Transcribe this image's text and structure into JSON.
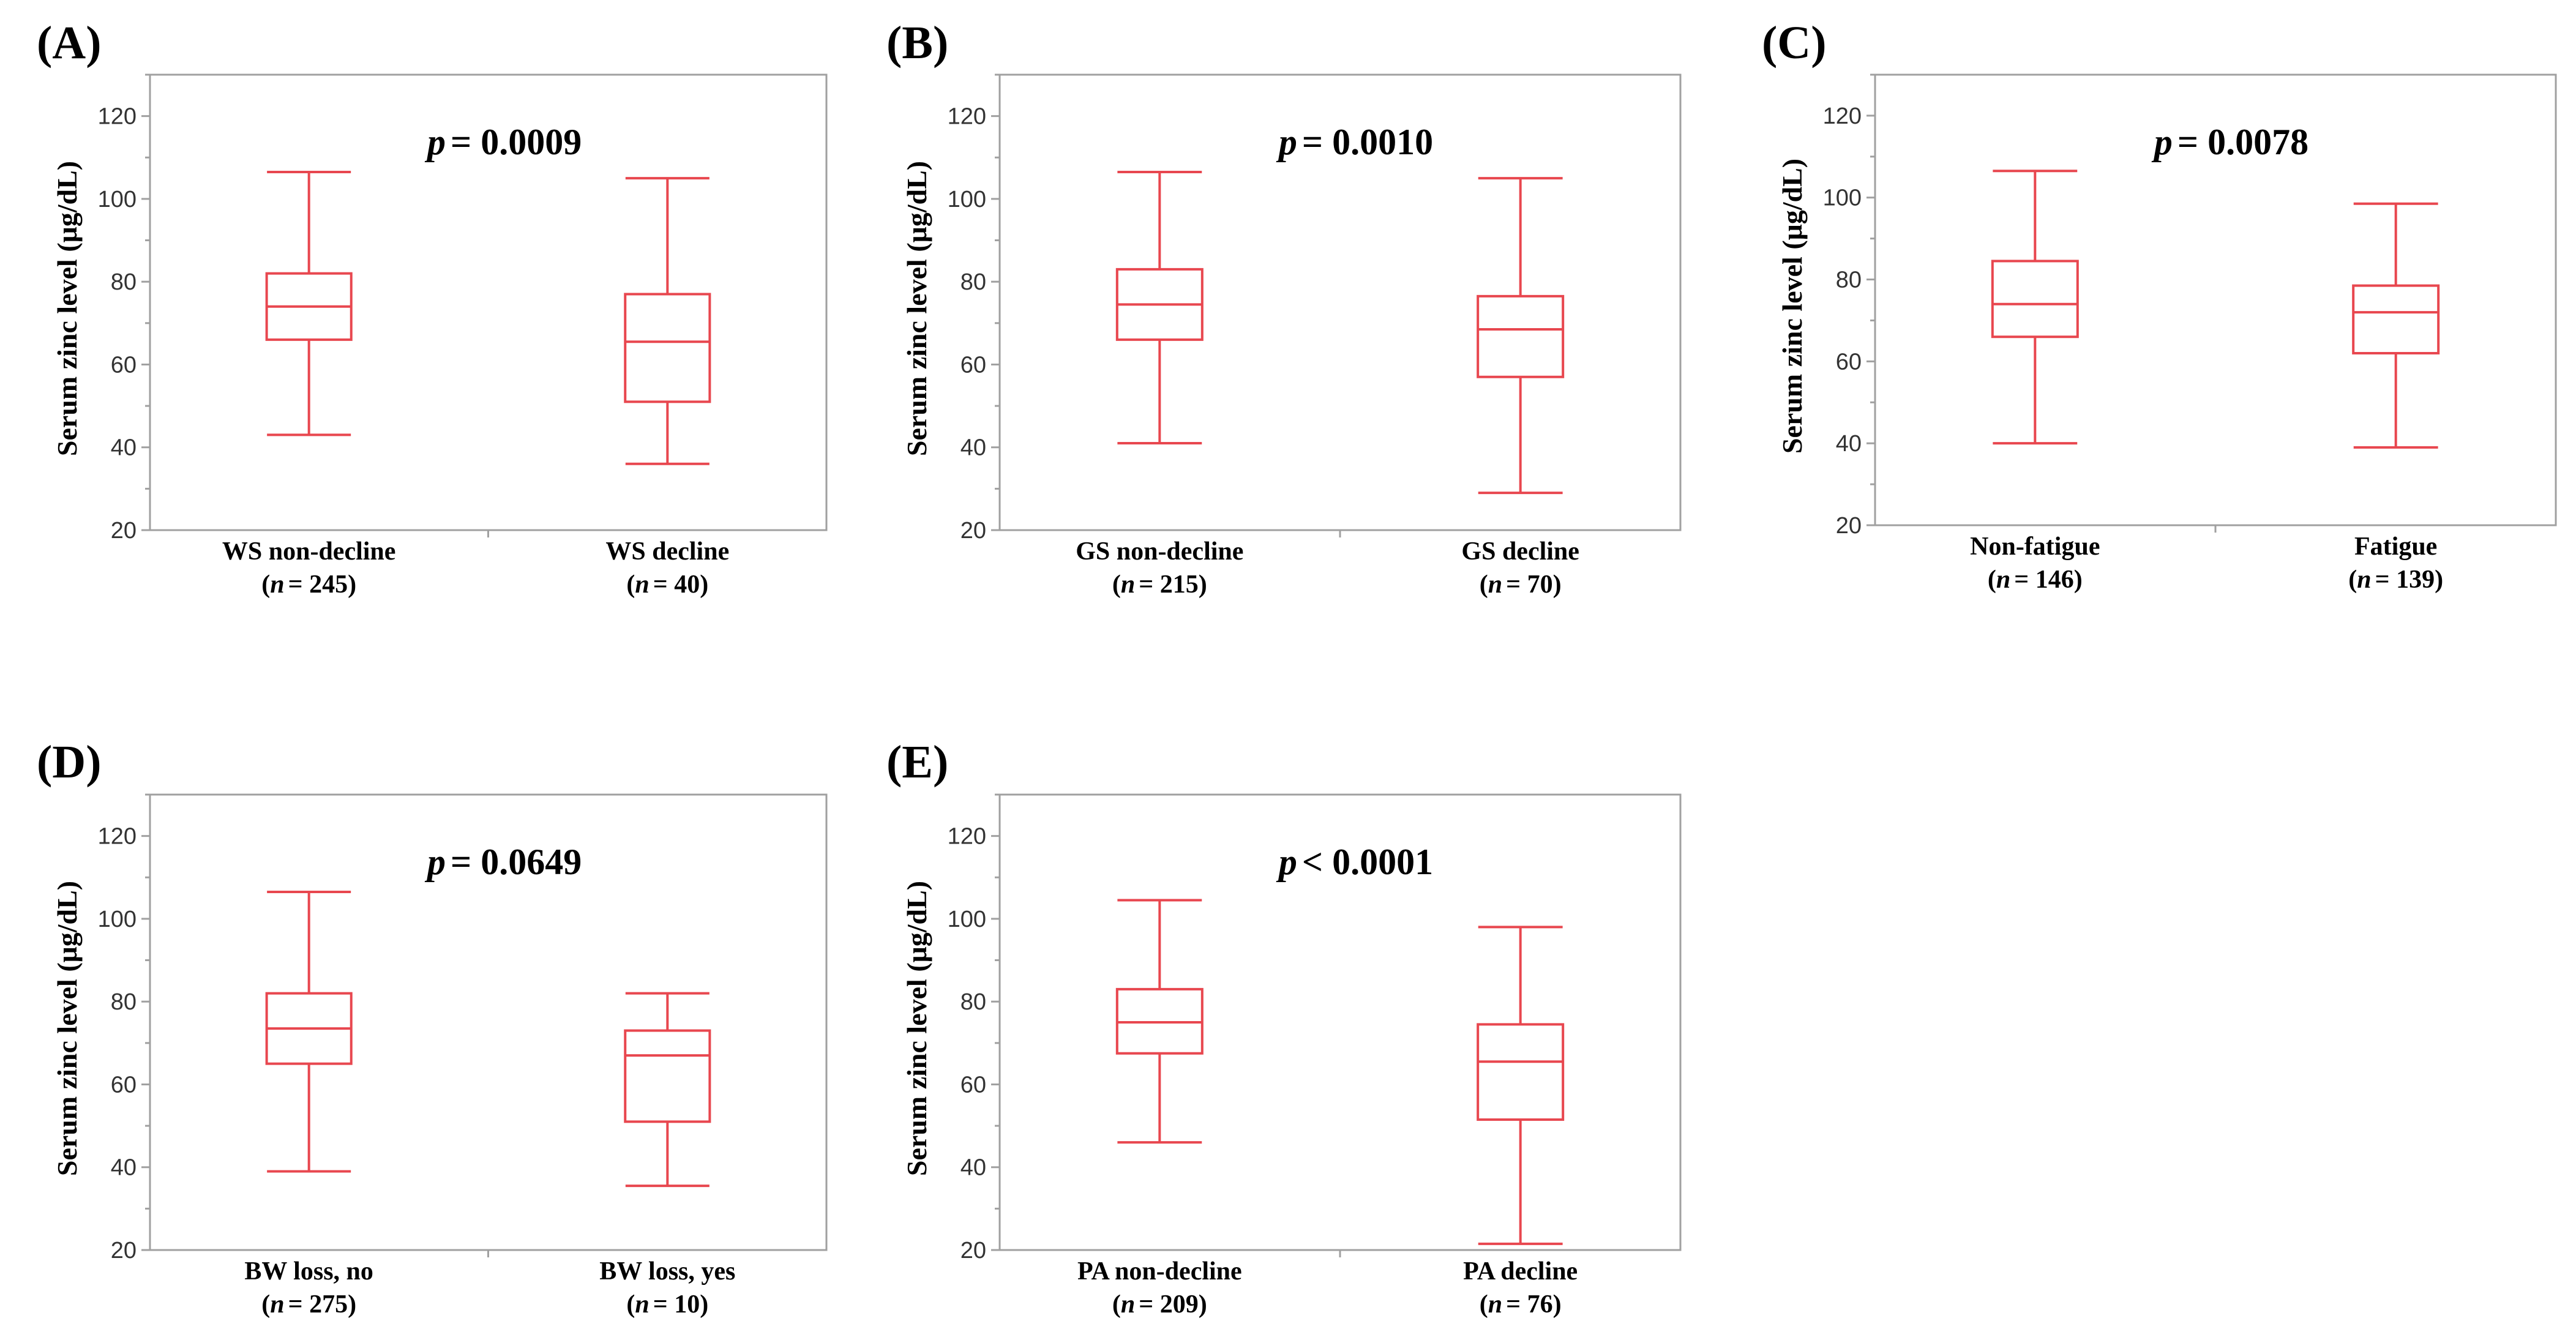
{
  "chart_data": [
    {
      "type": "box",
      "panel": "(A)",
      "ylabel": "Serum zinc  level (μg/dL)",
      "yticks": [
        20,
        40,
        60,
        80,
        100,
        120
      ],
      "ylim": [
        20,
        130
      ],
      "p_prefix": "p",
      "p_op": "= 0.0009",
      "groups": [
        {
          "name": "WS non-decline",
          "n_prefix": "n",
          "n_text": "= 245)",
          "min": 43,
          "q1": 66,
          "median": 74,
          "q3": 82,
          "max": 106.5
        },
        {
          "name": "WS decline",
          "n_prefix": "n",
          "n_text": "= 40)",
          "min": 36,
          "q1": 51,
          "median": 65.5,
          "q3": 77,
          "max": 105
        }
      ]
    },
    {
      "type": "box",
      "panel": "(B)",
      "ylabel": "Serum zinc  level (μg/dL)",
      "yticks": [
        20,
        40,
        60,
        80,
        100,
        120
      ],
      "ylim": [
        20,
        130
      ],
      "p_prefix": "p",
      "p_op": "= 0.0010",
      "groups": [
        {
          "name": "GS non-decline",
          "n_prefix": "n",
          "n_text": "= 215)",
          "min": 41,
          "q1": 66,
          "median": 74.5,
          "q3": 83,
          "max": 106.5
        },
        {
          "name": "GS decline",
          "n_prefix": "n",
          "n_text": "= 70)",
          "min": 29,
          "q1": 57,
          "median": 68.5,
          "q3": 76.5,
          "max": 105
        }
      ]
    },
    {
      "type": "box",
      "panel": "(C)",
      "ylabel": "Serum zinc  level (μg/dL)",
      "yticks": [
        20,
        40,
        60,
        80,
        100,
        120
      ],
      "ylim": [
        20,
        130
      ],
      "p_prefix": "p",
      "p_op": "= 0.0078",
      "groups": [
        {
          "name": "Non-fatigue",
          "n_prefix": "n",
          "n_text": "= 146)",
          "min": 40,
          "q1": 66,
          "median": 74,
          "q3": 84.5,
          "max": 106.5
        },
        {
          "name": "Fatigue",
          "n_prefix": "n",
          "n_text": "= 139)",
          "min": 39,
          "q1": 62,
          "median": 72,
          "q3": 78.5,
          "max": 98.5
        }
      ]
    },
    {
      "type": "box",
      "panel": "(D)",
      "ylabel": "Serum zinc  level (μg/dL)",
      "yticks": [
        20,
        40,
        60,
        80,
        100,
        120
      ],
      "ylim": [
        20,
        130
      ],
      "p_prefix": "p",
      "p_op": "= 0.0649",
      "groups": [
        {
          "name": "BW loss, no",
          "n_prefix": "n",
          "n_text": "= 275)",
          "min": 39,
          "q1": 65,
          "median": 73.5,
          "q3": 82,
          "max": 106.5
        },
        {
          "name": "BW loss, yes",
          "n_prefix": "n",
          "n_text": "= 10)",
          "min": 35.5,
          "q1": 51,
          "median": 67,
          "q3": 73,
          "max": 82
        }
      ]
    },
    {
      "type": "box",
      "panel": "(E)",
      "ylabel": "Serum zinc  level (μg/dL)",
      "yticks": [
        20,
        40,
        60,
        80,
        100,
        120
      ],
      "ylim": [
        20,
        130
      ],
      "p_prefix": "p",
      "p_op": "< 0.0001",
      "groups": [
        {
          "name": "PA non-decline",
          "n_prefix": "n",
          "n_text": "= 209)",
          "min": 46,
          "q1": 67.5,
          "median": 75,
          "q3": 83,
          "max": 104.5
        },
        {
          "name": "PA decline",
          "n_prefix": "n",
          "n_text": "= 76)",
          "min": 21.5,
          "q1": 51.5,
          "median": 65.5,
          "q3": 74.5,
          "max": 98
        }
      ]
    }
  ]
}
